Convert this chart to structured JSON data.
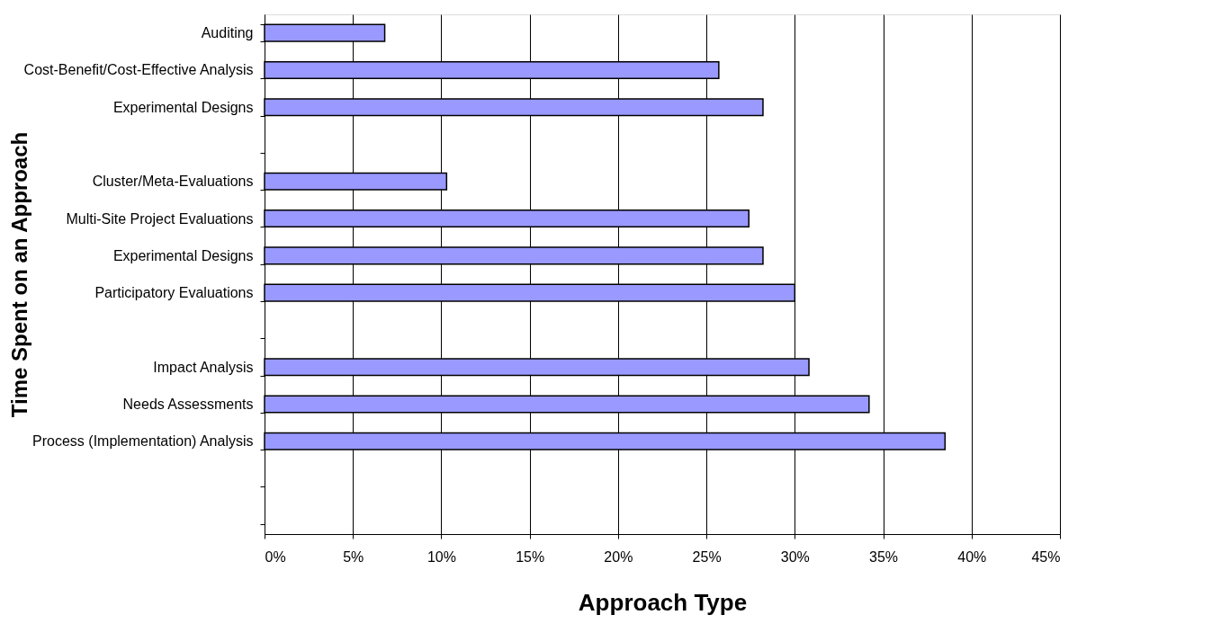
{
  "chart_data": {
    "type": "bar",
    "orientation": "horizontal",
    "xlabel": "Approach Type",
    "ylabel": "Time Spent on an Approach",
    "categories": [
      "Auditing",
      "Cost-Benefit/Cost-Effective  Analysis",
      "Experimental Designs",
      null,
      "Cluster/Meta-Evaluations",
      "Multi-Site Project Evaluations",
      "Experimental Designs",
      "Participatory Evaluations",
      null,
      "Impact Analysis",
      "Needs Assessments",
      "Process (Implementation) Analysis",
      null,
      null
    ],
    "values": [
      6.8,
      25.7,
      28.2,
      null,
      10.3,
      27.4,
      28.2,
      30.0,
      null,
      30.8,
      34.2,
      38.5,
      null,
      null
    ],
    "color": "#9999ff",
    "xlim": [
      0,
      45
    ],
    "xticks": [
      {
        "value": 0,
        "label": "0%"
      },
      {
        "value": 5,
        "label": "5%"
      },
      {
        "value": 10,
        "label": "10%"
      },
      {
        "value": 15,
        "label": "15%"
      },
      {
        "value": 20,
        "label": "20%"
      },
      {
        "value": 25,
        "label": "25%"
      },
      {
        "value": 30,
        "label": "30%"
      },
      {
        "value": 35,
        "label": "35%"
      },
      {
        "value": 40,
        "label": "40%"
      },
      {
        "value": 45,
        "label": "45%"
      }
    ],
    "grid": "x"
  }
}
